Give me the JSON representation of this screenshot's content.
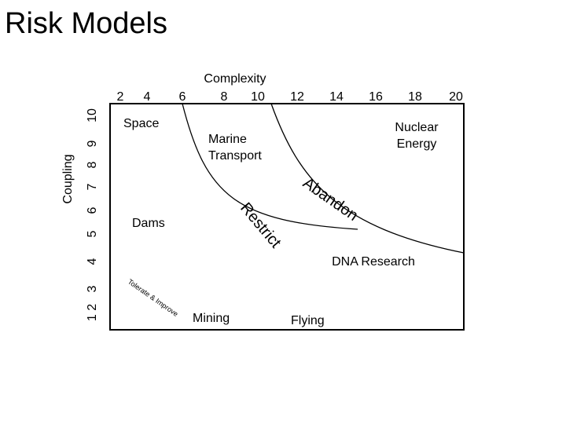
{
  "header": {
    "title": "Risk Models"
  },
  "diagram": {
    "x_axis_label": "Complexity",
    "y_axis_label": "Coupling",
    "x_ticks": [
      "2",
      "4",
      "6",
      "8",
      "10",
      "12",
      "14",
      "16",
      "18",
      "20"
    ],
    "y_ticks": [
      "1 2",
      "3",
      "4",
      "5",
      "6",
      "7",
      "8",
      "9",
      "10"
    ],
    "regions": [
      "Tolerate & Improve",
      "Restrict",
      "Abandon"
    ],
    "items": [
      "Space",
      "Marine Transport",
      "Nuclear Energy",
      "Dams",
      "DNA Research",
      "Mining",
      "Flying"
    ]
  }
}
